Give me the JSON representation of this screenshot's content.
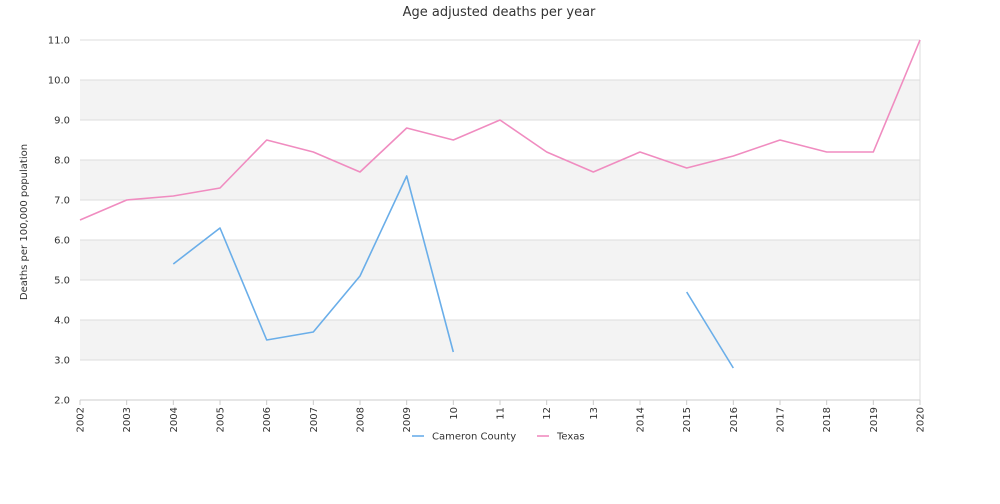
{
  "chart_data": {
    "type": "line",
    "title": "Age adjusted deaths per year",
    "xlabel": "",
    "ylabel": "Deaths per 100,000 population",
    "ylim": [
      2.0,
      11.0
    ],
    "yticks": [
      "2.0",
      "3.0",
      "4.0",
      "5.0",
      "6.0",
      "7.0",
      "8.0",
      "9.0",
      "10.0",
      "11.0"
    ],
    "categories": [
      "2002",
      "2003",
      "2004",
      "2005",
      "2006",
      "2007",
      "2008",
      "2009",
      "10",
      "11",
      "12",
      "13",
      "2014",
      "2015",
      "2016",
      "2017",
      "2018",
      "2019",
      "2020"
    ],
    "grid": true,
    "legend_position": "bottom",
    "series": [
      {
        "name": "Cameron County",
        "color": "#6aaee9",
        "values": [
          null,
          null,
          5.4,
          6.3,
          3.5,
          3.7,
          5.1,
          7.6,
          3.2,
          null,
          null,
          null,
          null,
          4.7,
          2.8,
          null,
          null,
          null,
          null
        ]
      },
      {
        "name": "Texas",
        "color": "#f08cc0",
        "values": [
          6.5,
          7.0,
          7.1,
          7.3,
          8.5,
          8.2,
          7.7,
          8.8,
          8.5,
          9.0,
          8.2,
          7.7,
          8.2,
          7.8,
          8.1,
          8.5,
          8.2,
          8.2,
          11.0
        ]
      }
    ]
  }
}
